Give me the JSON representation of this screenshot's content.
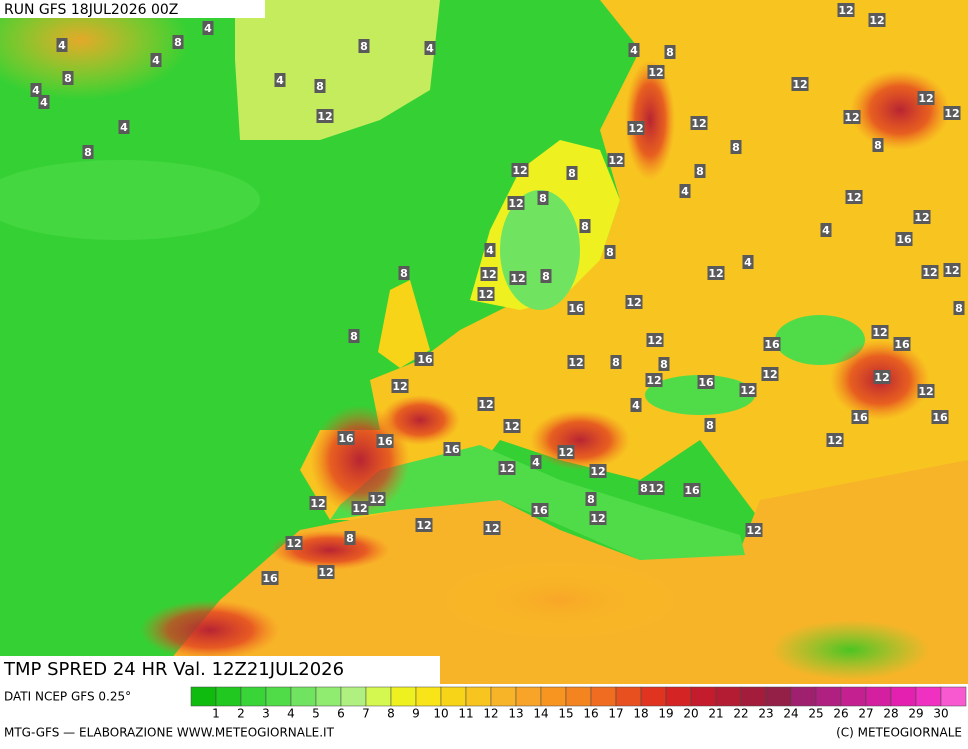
{
  "header": {
    "run": "RUN GFS 18JUL2026 00Z"
  },
  "map": {
    "title": "TMP SPRED 24 HR Val. 12Z21JUL2026",
    "labels": [
      "12",
      "12",
      "4",
      "8",
      "4",
      "8",
      "4",
      "4",
      "8",
      "4",
      "4",
      "8",
      "12",
      "4",
      "4",
      "8",
      "4",
      "12",
      "8",
      "12",
      "12",
      "12",
      "12",
      "8",
      "12",
      "12",
      "8",
      "4",
      "8",
      "12",
      "8",
      "12",
      "8",
      "12",
      "12",
      "16",
      "12",
      "4",
      "8",
      "4",
      "12",
      "12",
      "8",
      "12",
      "8",
      "8",
      "12",
      "4",
      "12",
      "12",
      "8",
      "12",
      "16",
      "12",
      "16",
      "12",
      "16",
      "12",
      "12",
      "16",
      "16",
      "12",
      "8",
      "4",
      "16",
      "12",
      "12",
      "12",
      "8",
      "8",
      "12",
      "16",
      "12",
      "12",
      "4",
      "8",
      "16",
      "16",
      "16",
      "12",
      "12",
      "12",
      "4",
      "12",
      "8",
      "12",
      "16",
      "12",
      "12",
      "12",
      "8",
      "12",
      "12",
      "16",
      "12",
      "12",
      "8",
      "12",
      "16",
      "12"
    ]
  },
  "colorbar": {
    "source": "DATI NCEP GFS 0.25°",
    "ticks": [
      1,
      2,
      3,
      4,
      5,
      6,
      7,
      8,
      9,
      10,
      11,
      12,
      13,
      14,
      15,
      16,
      17,
      18,
      19,
      20,
      21,
      22,
      23,
      24,
      25,
      26,
      27,
      28,
      29,
      30
    ],
    "colors": [
      "#10bb10",
      "#20c820",
      "#38d438",
      "#50dc48",
      "#70e460",
      "#90ec70",
      "#b0f080",
      "#d4f850",
      "#eef020",
      "#f8e418",
      "#f8d418",
      "#f8c420",
      "#f8b428",
      "#f8a428",
      "#f89420",
      "#f48420",
      "#f06c20",
      "#e85020",
      "#e03420",
      "#d42424",
      "#c41c2c",
      "#b41c34",
      "#a41c3c",
      "#942048",
      "#a02070",
      "#b02080",
      "#c42090",
      "#d420a0",
      "#e420b0",
      "#f030c0",
      "#f858d0"
    ]
  },
  "footer": {
    "left": "MTG-GFS — ELABORAZIONE WWW.METEOGIORNALE.IT",
    "right": "(C) METEOGIORNALE"
  }
}
